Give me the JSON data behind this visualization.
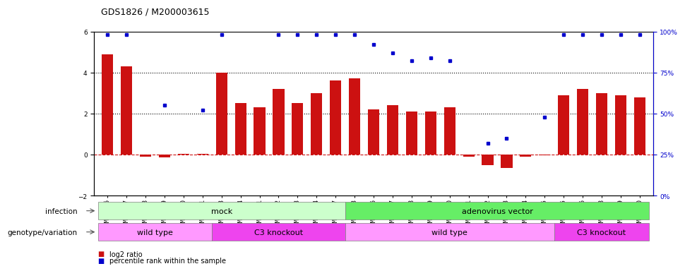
{
  "title": "GDS1826 / M200003615",
  "categories": [
    "GSM87316",
    "GSM87317",
    "GSM93998",
    "GSM93999",
    "GSM94000",
    "GSM94001",
    "GSM93633",
    "GSM93634",
    "GSM93651",
    "GSM93652",
    "GSM93653",
    "GSM93654",
    "GSM93657",
    "GSM86643",
    "GSM87306",
    "GSM87307",
    "GSM87308",
    "GSM87309",
    "GSM87310",
    "GSM87311",
    "GSM87312",
    "GSM87313",
    "GSM87314",
    "GSM87315",
    "GSM93655",
    "GSM93656",
    "GSM93658",
    "GSM93659",
    "GSM93660"
  ],
  "log2_ratio": [
    4.9,
    4.3,
    -0.1,
    -0.15,
    0.05,
    0.05,
    4.0,
    2.5,
    2.3,
    3.2,
    2.5,
    3.0,
    3.6,
    3.7,
    2.2,
    2.4,
    2.1,
    2.1,
    2.3,
    -0.1,
    -0.5,
    -0.65,
    -0.1,
    -0.05,
    2.9,
    3.2,
    3.0,
    2.9,
    2.8
  ],
  "percentile": [
    98,
    98,
    null,
    55,
    null,
    52,
    98,
    null,
    null,
    98,
    98,
    98,
    98,
    98,
    92,
    87,
    82,
    84,
    82,
    null,
    32,
    35,
    null,
    48,
    98,
    98,
    98,
    98,
    98
  ],
  "bar_color": "#cc1111",
  "dot_color": "#0000cc",
  "right_axis_color": "#0000cc",
  "ylim": [
    -2,
    6
  ],
  "right_ylim": [
    0,
    100
  ],
  "right_yticks": [
    0,
    25,
    50,
    75,
    100
  ],
  "right_yticklabels": [
    "0%",
    "25%",
    "50%",
    "75%",
    "100%"
  ],
  "left_yticks": [
    -2,
    0,
    2,
    4,
    6
  ],
  "infection_mock_range": [
    0,
    12
  ],
  "infection_adeno_range": [
    13,
    28
  ],
  "mock_color": "#ccffcc",
  "adeno_color": "#66ee66",
  "wildtype1_range": [
    0,
    5
  ],
  "c3ko1_range": [
    6,
    12
  ],
  "wildtype2_range": [
    13,
    23
  ],
  "c3ko2_range": [
    24,
    28
  ],
  "wildtype_color": "#ff99ff",
  "c3ko_color": "#ee44ee",
  "infection_label": "infection",
  "genotype_label": "genotype/variation",
  "mock_label": "mock",
  "adeno_label": "adenovirus vector",
  "wildtype_label": "wild type",
  "c3ko_label": "C3 knockout",
  "legend_bar_label": "log2 ratio",
  "legend_dot_label": "percentile rank within the sample",
  "bar_width": 0.6,
  "title_fontsize": 9,
  "tick_fontsize": 6.5,
  "label_fontsize": 8,
  "annotation_fontsize": 7.5
}
